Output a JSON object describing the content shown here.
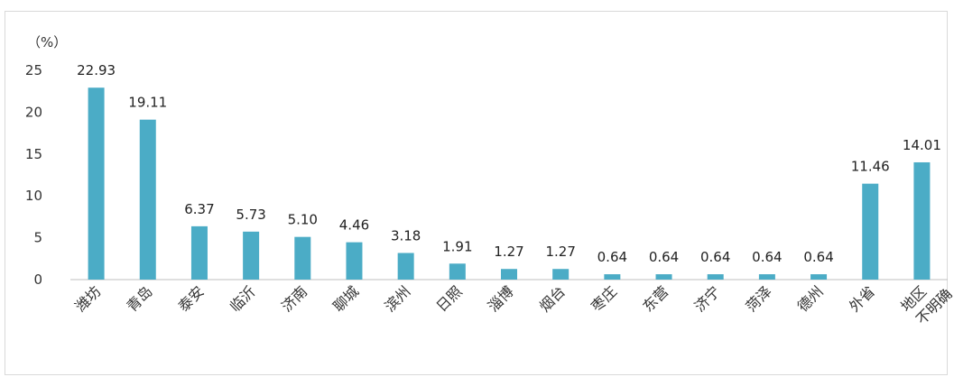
{
  "chart_data": {
    "type": "bar",
    "unit_label": "（%）",
    "categories": [
      "潍坊",
      "青岛",
      "泰安",
      "临沂",
      "济南",
      "聊城",
      "滨州",
      "日照",
      "淄博",
      "烟台",
      "枣庄",
      "东营",
      "济宁",
      "菏泽",
      "德州",
      "外省",
      "地区不明确"
    ],
    "values": [
      22.93,
      19.11,
      6.37,
      5.73,
      5.1,
      4.46,
      3.18,
      1.91,
      1.27,
      1.27,
      0.64,
      0.64,
      0.64,
      0.64,
      0.64,
      11.46,
      14.01
    ],
    "value_labels": [
      "22.93",
      "19.11",
      "6.37",
      "5.73",
      "5.10",
      "4.46",
      "3.18",
      "1.91",
      "1.27",
      "1.27",
      "0.64",
      "0.64",
      "0.64",
      "0.64",
      "0.64",
      "11.46",
      "14.01"
    ],
    "y_ticks": [
      "0",
      "5",
      "10",
      "15",
      "20",
      "25"
    ],
    "ylim": [
      0,
      25
    ],
    "bar_color": "#4bacc6",
    "grid": false,
    "legend": "none"
  }
}
